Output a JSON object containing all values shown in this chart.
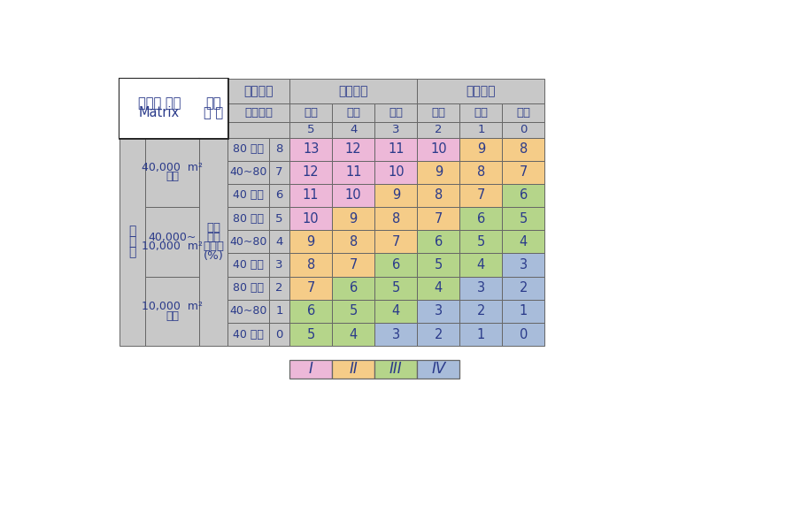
{
  "title_lines_left": [
    "서식처 평가",
    "Matrix"
  ],
  "title_lines_right": [
    "호소",
    "습 지"
  ],
  "header1": [
    "호소기원",
    "자연호소",
    "인공호소"
  ],
  "header2_left": "수문통제",
  "header2_right": [
    "없음",
    "소극",
    "적극",
    "없음",
    "소극",
    "적극"
  ],
  "header3": [
    "5",
    "4",
    "3",
    "2",
    "1",
    "0"
  ],
  "row_labels_size": [
    "80 이상",
    "40~80",
    "40 이하",
    "80 이상",
    "40~80",
    "40 이하",
    "80 이상",
    "40~80",
    "40 이하"
  ],
  "row_labels_score": [
    "8",
    "7",
    "6",
    "5",
    "4",
    "3",
    "2",
    "1",
    "0"
  ],
  "row_labels_area": [
    [
      "40,000  m²",
      "이상"
    ],
    [
      "40,000~",
      "10,000  m²"
    ],
    [
      "10,000  m²",
      "이하"
    ]
  ],
  "aquatic_plant_label": [
    "수생",
    "식물",
    "점유율",
    "(%)"
  ],
  "surface_area_label": [
    "수",
    "면",
    "적"
  ],
  "data_values": [
    [
      13,
      12,
      11,
      10,
      9,
      8
    ],
    [
      12,
      11,
      10,
      9,
      8,
      7
    ],
    [
      11,
      10,
      9,
      8,
      7,
      6
    ],
    [
      10,
      9,
      8,
      7,
      6,
      5
    ],
    [
      9,
      8,
      7,
      6,
      5,
      4
    ],
    [
      8,
      7,
      6,
      5,
      4,
      3
    ],
    [
      7,
      6,
      5,
      4,
      3,
      2
    ],
    [
      6,
      5,
      4,
      3,
      2,
      1
    ],
    [
      5,
      4,
      3,
      2,
      1,
      0
    ]
  ],
  "color_map": [
    [
      "pink",
      "pink",
      "pink",
      "pink",
      "orange",
      "orange"
    ],
    [
      "pink",
      "pink",
      "pink",
      "orange",
      "orange",
      "orange"
    ],
    [
      "pink",
      "pink",
      "orange",
      "orange",
      "orange",
      "green"
    ],
    [
      "pink",
      "orange",
      "orange",
      "orange",
      "green",
      "green"
    ],
    [
      "orange",
      "orange",
      "orange",
      "green",
      "green",
      "green"
    ],
    [
      "orange",
      "orange",
      "green",
      "green",
      "green",
      "blue"
    ],
    [
      "orange",
      "green",
      "green",
      "green",
      "blue",
      "blue"
    ],
    [
      "green",
      "green",
      "green",
      "blue",
      "blue",
      "blue"
    ],
    [
      "green",
      "green",
      "blue",
      "blue",
      "blue",
      "blue"
    ]
  ],
  "colors": {
    "pink": "#EDB8D8",
    "orange": "#F5CC88",
    "green": "#B5D58A",
    "blue": "#A8BCDA",
    "bg": "#C8C8C8",
    "white": "#FFFFFF",
    "text": "#2A3A8A",
    "border": "#666666",
    "title_border": "#222222"
  },
  "legend_labels": [
    "I",
    "II",
    "III",
    "IV"
  ],
  "legend_color_keys": [
    "pink",
    "orange",
    "green",
    "blue"
  ]
}
